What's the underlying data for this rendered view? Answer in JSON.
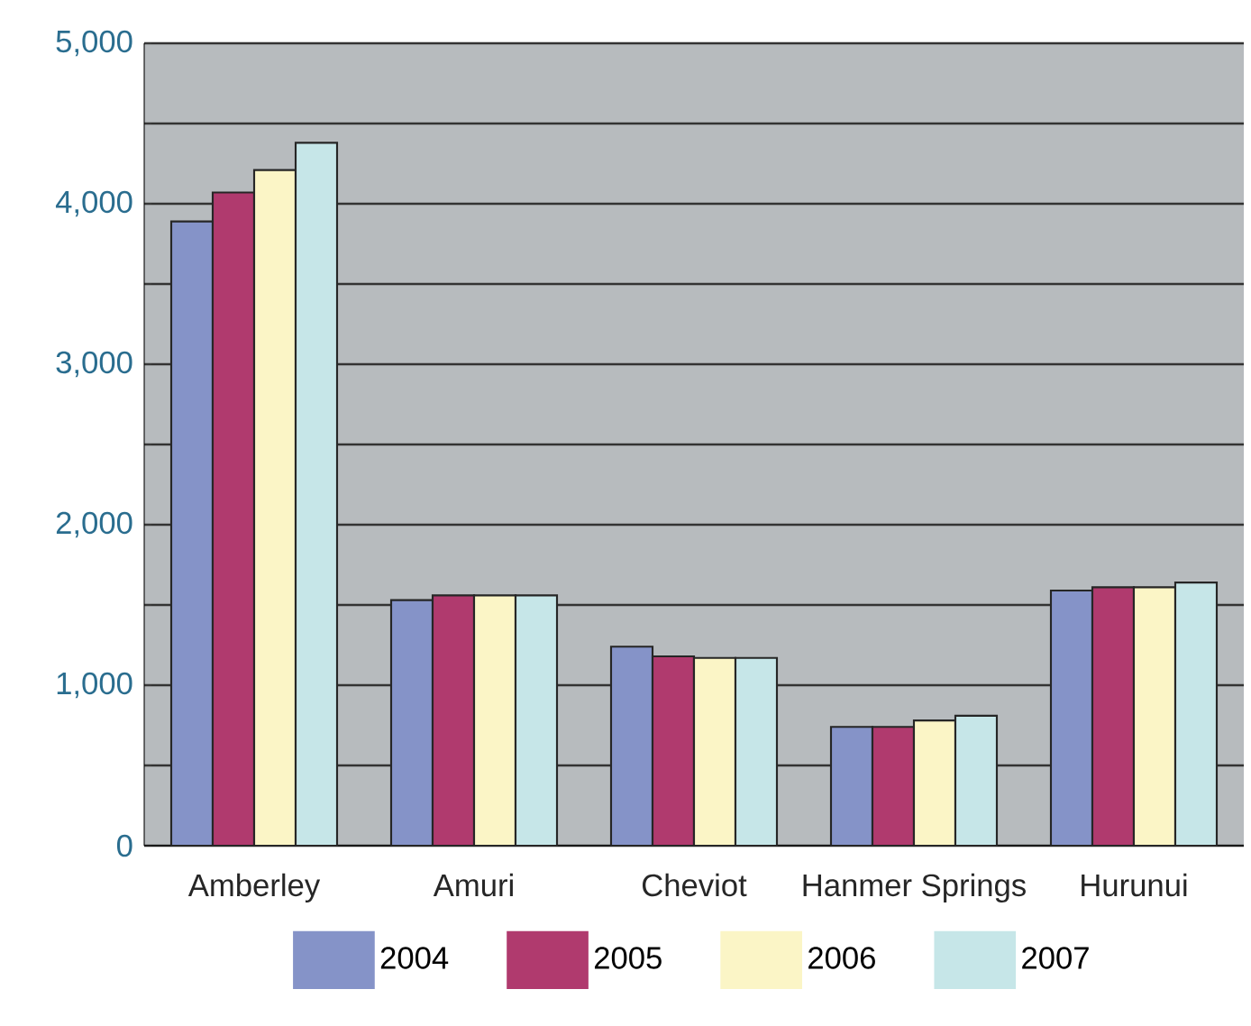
{
  "chart_data": {
    "type": "bar",
    "categories": [
      "Amberley",
      "Amuri",
      "Cheviot",
      "Hanmer Springs",
      "Hurunui"
    ],
    "series": [
      {
        "name": "2004",
        "color": "#8593c8",
        "values": [
          3890,
          1530,
          1240,
          740,
          1590
        ]
      },
      {
        "name": "2005",
        "color": "#b03a6e",
        "values": [
          4070,
          1560,
          1180,
          740,
          1610
        ]
      },
      {
        "name": "2006",
        "color": "#fbf5c6",
        "values": [
          4210,
          1560,
          1170,
          780,
          1610
        ]
      },
      {
        "name": "2007",
        "color": "#c6e6e8",
        "values": [
          4380,
          1560,
          1170,
          810,
          1640
        ]
      }
    ],
    "ylim": [
      0,
      5000
    ],
    "yticks": [
      {
        "value": 0,
        "label": "0"
      },
      {
        "value": 500,
        "label": null
      },
      {
        "value": 1000,
        "label": "1,000"
      },
      {
        "value": 1500,
        "label": null
      },
      {
        "value": 2000,
        "label": "2,000"
      },
      {
        "value": 2500,
        "label": null
      },
      {
        "value": 3000,
        "label": "3,000"
      },
      {
        "value": 3500,
        "label": null
      },
      {
        "value": 4000,
        "label": "4,000"
      },
      {
        "value": 4500,
        "label": null
      },
      {
        "value": 5000,
        "label": "5,000"
      }
    ],
    "grid": "y",
    "legend": "bottom"
  }
}
